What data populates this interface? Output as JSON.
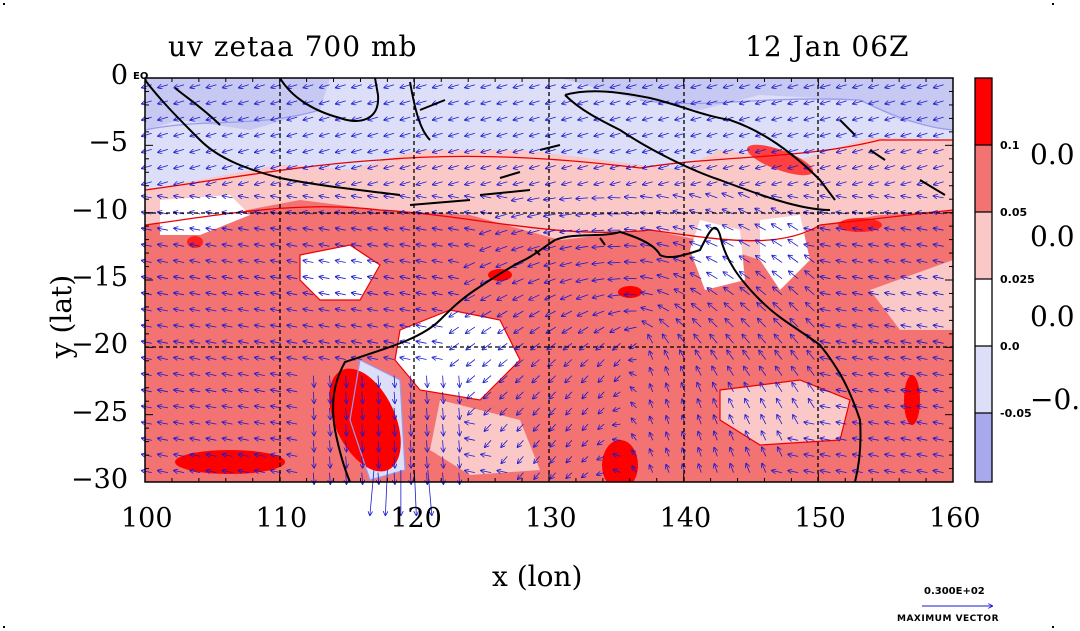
{
  "title": {
    "left": "uv zetaa 700 mb",
    "right": "12 Jan 06Z"
  },
  "axes": {
    "xlabel": "x (lon)",
    "ylabel": "y (lat)",
    "x_range": [
      100,
      160
    ],
    "y_range": [
      -30,
      0
    ],
    "x_ticks": [
      "100",
      "110",
      "120",
      "130",
      "140",
      "150",
      "160"
    ],
    "y_ticks": [
      "0",
      "−5",
      "−10",
      "−15",
      "−20",
      "−25",
      "−30"
    ],
    "eq_label": "EQ",
    "grid": "dashed every 10° lon, 5° lat"
  },
  "colorbar": {
    "levels": [
      "0.1",
      "0.05",
      "0.025",
      "0.0",
      "-0.05"
    ],
    "big_labels": [
      "0.0",
      "0.0",
      "0.0",
      "−0."
    ],
    "colors": [
      "#ff0000",
      "#f37272",
      "#fbc8c8",
      "#ffffff",
      "#dddff8",
      "#a8a8ec"
    ]
  },
  "legend": {
    "vector_value": "0.300E+02",
    "vector_label": "MAXIMUM VECTOR"
  },
  "colors": {
    "vector": "#1a1ad0",
    "coastline": "#000000",
    "contour_pos": "#ee0000",
    "contour_neg": "#9a9aee"
  }
}
